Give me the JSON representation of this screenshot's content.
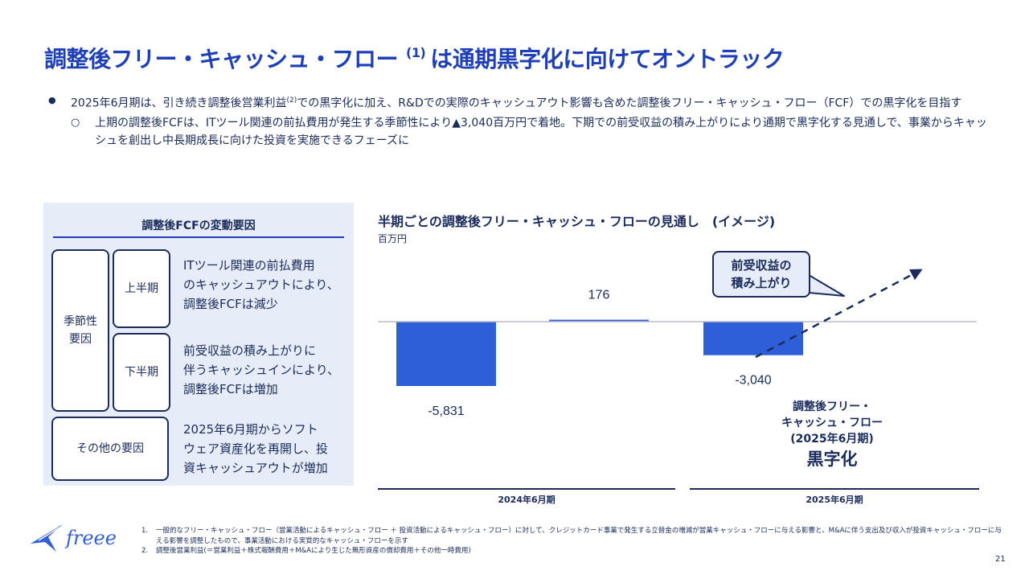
{
  "title": {
    "main": "調整後フリー・キャッシュ・フロー",
    "sup": "(1)",
    "rest": "は通期黒字化に向けてオントラック"
  },
  "bullets": {
    "b1_a": "2025年6月期は、引き続き調整後営業利益",
    "b1_sup": "(2)",
    "b1_b": "での黒字化に加え、R&Dでの実際のキャッシュアウト影響も含めた調整後フリー・キャッシュ・フロー（FCF）での黒字化を目指す",
    "b2": "上期の調整後FCFは、ITツール関連の前払費用が発生する季節性により▲3,040百万円で着地。下期での前受収益の積み上がりにより通期で黒字化する見通しで、事業からキャッシュを創出し中長期成長に向けた投資を実施できるフェーズに"
  },
  "panel": {
    "title": "調整後FCFの変動要因",
    "seasonal": "季節性\n要因",
    "h1": "上半期",
    "h2": "下半期",
    "other": "その他の要因",
    "h1_desc": [
      "ITツール関連の前払費用",
      "のキャッシュアウトにより、",
      "調整後FCFは減少"
    ],
    "h2_desc": [
      "前受収益の積み上がりに",
      "伴うキャッシュインにより、",
      "調整後FCFは増加"
    ],
    "other_desc": [
      "2025年6月期からソフト",
      "ウェア資産化を再開し、投",
      "資キャッシュアウトが増加"
    ]
  },
  "chart_data": {
    "type": "bar",
    "title": "半期ごとの調整後フリー・キャッシュ・フローの見通し　(イメージ)",
    "ylabel": "百万円",
    "categories": [
      "2024年6月期 上期",
      "2024年6月期 下期",
      "2025年6月期 上期"
    ],
    "values": [
      -5831,
      176,
      -3040
    ],
    "value_labels": [
      "-5,831",
      "176",
      "-3,040"
    ],
    "period_labels": [
      "2024年6月期",
      "2025年6月期"
    ],
    "bar_color": "#2f5fd8",
    "grid": false
  },
  "callout": [
    "前受収益の",
    "積み上がり"
  ],
  "outlook_note": [
    "調整後フリー・",
    "キャッシュ・フロー",
    "(2025年6月期)"
  ],
  "outlook_big": "黒字化",
  "logo_text": "freee",
  "footnotes": [
    {
      "num": "1.",
      "text": "一般的なフリー・キャッシュ・フロー（営業活動によるキャッシュ・フロー ＋ 投資活動によるキャッシュ・フロー）に対して、クレジットカード事業で発生する立替金の増減が営業キャッシュ・フローに与える影響と、M&Aに伴う支出及び収入が投資キャッシュ・フローに与える影響を調整したもので、事業活動における実質的なキャッシュ・フローを示す"
    },
    {
      "num": "2.",
      "text": "調整後営業利益(＝営業利益＋株式報酬費用＋M&Aにより生じた無形資産の償却費用＋その他一時費用)"
    }
  ],
  "page_number": "21"
}
